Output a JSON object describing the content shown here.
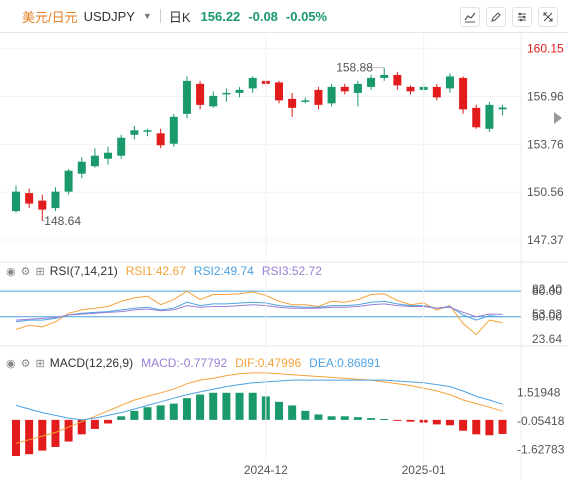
{
  "header": {
    "symbol_cn": "美元/日元",
    "symbol_code": "USDJPY",
    "period": "日K",
    "last_price": "156.22",
    "change": "-0.08",
    "change_pct": "-0.05%"
  },
  "toolbar_icons": [
    "chart-style-icon",
    "draw-tool-icon",
    "indicators-icon",
    "fullscreen-icon"
  ],
  "colors": {
    "up": "#1a9a6b",
    "down": "#e21c1c",
    "rsi1": "#f3a33b",
    "rsi2": "#4ea3e2",
    "rsi3": "#9b7fd4",
    "dif": "#f3a33b",
    "dea": "#4ea3e2",
    "symbol": "#e67e22",
    "change": "#1a9a6b"
  },
  "chart_data": [
    {
      "type": "candlestick",
      "name": "USDJPY daily",
      "price_ticks": [
        "160.15",
        "156.96",
        "153.76",
        "150.56",
        "147.37"
      ],
      "ylim": [
        146.7,
        160.6
      ],
      "high_label": "158.88",
      "low_label": "148.64",
      "x_labels": [
        "2024-12",
        "2025-01"
      ],
      "x_label_index": [
        19,
        31
      ],
      "candles": [
        [
          149.3,
          150.6,
          149.2,
          151.0
        ],
        [
          150.5,
          149.8,
          149.5,
          150.8
        ],
        [
          150.0,
          149.4,
          148.64,
          150.4
        ],
        [
          149.5,
          150.6,
          149.3,
          150.9
        ],
        [
          150.6,
          152.0,
          150.4,
          152.1
        ],
        [
          151.8,
          152.6,
          151.5,
          152.9
        ],
        [
          152.3,
          153.0,
          152.2,
          153.5
        ],
        [
          152.8,
          153.2,
          152.4,
          153.6
        ],
        [
          153.0,
          154.2,
          152.8,
          154.4
        ],
        [
          154.4,
          154.7,
          154.1,
          155.0
        ],
        [
          154.6,
          154.7,
          154.3,
          154.8
        ],
        [
          154.5,
          153.7,
          153.5,
          154.8
        ],
        [
          153.8,
          155.6,
          153.6,
          155.8
        ],
        [
          155.8,
          158.0,
          155.5,
          158.3
        ],
        [
          157.8,
          156.4,
          156.1,
          158.0
        ],
        [
          156.3,
          157.0,
          156.2,
          157.3
        ],
        [
          157.1,
          157.2,
          156.6,
          157.5
        ],
        [
          157.2,
          157.4,
          156.9,
          157.6
        ],
        [
          157.5,
          158.2,
          157.2,
          158.3
        ],
        [
          158.0,
          157.8,
          157.6,
          158.1
        ],
        [
          157.9,
          156.7,
          156.5,
          158.0
        ],
        [
          156.8,
          156.2,
          155.6,
          157.2
        ],
        [
          156.6,
          156.7,
          156.5,
          156.9
        ],
        [
          157.4,
          156.4,
          156.1,
          157.6
        ],
        [
          156.5,
          157.6,
          156.3,
          157.8
        ],
        [
          157.6,
          157.3,
          157.1,
          157.8
        ],
        [
          157.2,
          157.8,
          156.3,
          158.0
        ],
        [
          157.6,
          158.2,
          157.4,
          158.4
        ],
        [
          158.2,
          158.4,
          158.0,
          158.88
        ],
        [
          158.4,
          157.7,
          157.4,
          158.6
        ],
        [
          157.6,
          157.3,
          157.1,
          157.7
        ],
        [
          157.4,
          157.6,
          157.2,
          157.9
        ],
        [
          157.6,
          156.9,
          156.7,
          157.8
        ],
        [
          157.5,
          158.3,
          157.2,
          158.5
        ],
        [
          158.2,
          156.1,
          155.8,
          158.3
        ],
        [
          156.2,
          154.9,
          154.8,
          156.4
        ],
        [
          154.8,
          156.4,
          154.6,
          156.6
        ],
        [
          156.1,
          156.22,
          155.7,
          156.4
        ]
      ]
    },
    {
      "type": "line",
      "name": "RSI",
      "label": "RSI(7,14,21)",
      "ticks": [
        "80.00",
        "82.40",
        "53.02",
        "50.00",
        "23.64"
      ],
      "ylim": [
        18,
        93
      ],
      "reference_lines": [
        80,
        50
      ],
      "series": [
        {
          "name": "RSI1:42.67",
          "color": "#f3a33b",
          "values": [
            35,
            40,
            38,
            44,
            54,
            58,
            60,
            62,
            68,
            72,
            74,
            64,
            70,
            80,
            70,
            76,
            76,
            77,
            79,
            75,
            68,
            64,
            64,
            62,
            68,
            67,
            70,
            76,
            77,
            69,
            64,
            66,
            58,
            63,
            42,
            29,
            46,
            42.67
          ]
        },
        {
          "name": "RSI2:49.74",
          "color": "#4ea3e2",
          "values": [
            44,
            46,
            46,
            48,
            52,
            54,
            55,
            56,
            58,
            60,
            61,
            58,
            60,
            67,
            63,
            65,
            65,
            66,
            67,
            66,
            63,
            62,
            61,
            61,
            63,
            63,
            64,
            67,
            68,
            65,
            63,
            63,
            60,
            62,
            52,
            46,
            51,
            49.74
          ]
        },
        {
          "name": "RSI3:52.72",
          "color": "#9b7fd4",
          "values": [
            46,
            47,
            48,
            49,
            52,
            53,
            54,
            55,
            56,
            58,
            59,
            57,
            58,
            63,
            61,
            62,
            62,
            63,
            64,
            63,
            61,
            60,
            60,
            60,
            61,
            61,
            62,
            64,
            65,
            63,
            62,
            62,
            60,
            61,
            55,
            50,
            53,
            52.72
          ]
        }
      ]
    },
    {
      "type": "bar+line",
      "name": "MACD",
      "label": "MACD(12,26,9)",
      "ticks": [
        "1.51948",
        "-0.05418",
        "-1.62783"
      ],
      "ylim": [
        -2.0,
        2.65
      ],
      "series": [
        {
          "name": "MACD:-0.77792",
          "type": "bar",
          "values": [
            -2.0,
            -1.9,
            -1.7,
            -1.5,
            -1.2,
            -0.8,
            -0.5,
            -0.2,
            0.2,
            0.5,
            0.7,
            0.8,
            0.9,
            1.2,
            1.4,
            1.5,
            1.5,
            1.5,
            1.5,
            1.3,
            1.0,
            0.8,
            0.5,
            0.3,
            0.2,
            0.2,
            0.15,
            0.1,
            0.05,
            -0.05,
            -0.1,
            -0.15,
            -0.25,
            -0.3,
            -0.6,
            -0.8,
            -0.85,
            -0.78
          ]
        },
        {
          "name": "DIF:0.47996",
          "type": "line",
          "color": "#f3a33b",
          "values": [
            -1.3,
            -1.1,
            -0.9,
            -0.7,
            -0.4,
            -0.1,
            0.2,
            0.5,
            0.8,
            1.1,
            1.3,
            1.5,
            1.7,
            2.0,
            2.2,
            2.3,
            2.45,
            2.55,
            2.6,
            2.6,
            2.55,
            2.5,
            2.45,
            2.4,
            2.35,
            2.3,
            2.25,
            2.2,
            2.1,
            2.0,
            1.9,
            1.75,
            1.6,
            1.4,
            1.1,
            0.9,
            0.7,
            0.48
          ]
        },
        {
          "name": "DEA:0.86891",
          "type": "line",
          "color": "#4ea3e2",
          "values": [
            0.8,
            0.6,
            0.4,
            0.25,
            0.1,
            0.0,
            0.1,
            0.25,
            0.4,
            0.6,
            0.8,
            1.0,
            1.2,
            1.4,
            1.55,
            1.7,
            1.85,
            1.95,
            2.05,
            2.1,
            2.15,
            2.2,
            2.2,
            2.2,
            2.2,
            2.2,
            2.2,
            2.2,
            2.2,
            2.15,
            2.1,
            2.05,
            1.95,
            1.85,
            1.6,
            1.3,
            1.1,
            0.87
          ]
        }
      ]
    }
  ]
}
